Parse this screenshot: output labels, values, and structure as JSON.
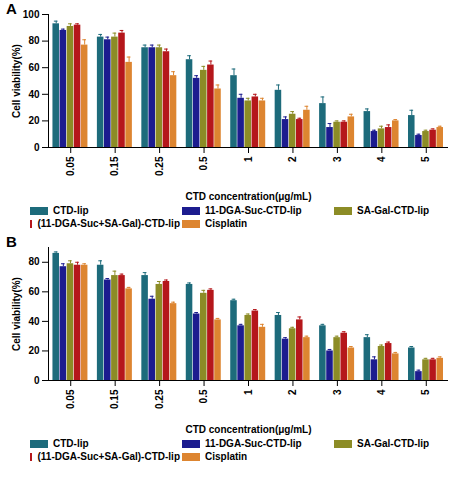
{
  "chart_data": [
    {
      "type": "bar",
      "title": "A",
      "legend": "bottom",
      "x_label": "CTD concentration(μg/mL)",
      "y_label": "Cell viability(%)",
      "categories": [
        "0.05",
        "0.15",
        "0.25",
        "0.5",
        "1",
        "2",
        "3",
        "4",
        "5"
      ],
      "ylim": [
        0,
        100
      ],
      "yticks": [
        0,
        20,
        40,
        60,
        80,
        100
      ],
      "series": [
        {
          "name": "CTD-lip",
          "color": "#1d6b7b",
          "values": [
            93,
            83,
            75,
            66,
            54,
            43,
            33,
            27,
            24
          ],
          "errors": [
            2,
            2,
            2,
            3,
            5,
            4,
            5,
            2,
            4
          ]
        },
        {
          "name": "11-DGA-Suc-CTD-lip",
          "color": "#1c1c8f",
          "values": [
            88,
            81,
            75,
            52,
            37,
            21,
            15,
            12,
            9
          ],
          "errors": [
            1,
            2,
            2,
            2,
            3,
            2,
            3,
            1,
            1
          ]
        },
        {
          "name": "SA-Gal-CTD-lip",
          "color": "#8c8c26",
          "values": [
            91,
            83,
            75,
            58,
            35,
            25,
            19,
            14,
            12
          ],
          "errors": [
            2,
            3,
            2,
            3,
            2,
            2,
            1,
            2,
            1
          ]
        },
        {
          "name": "(11-DGA-Suc+SA-Gal)-CTD-lip",
          "color": "#b5171b",
          "values": [
            92,
            86,
            72,
            62,
            38,
            21,
            19,
            15,
            13
          ],
          "errors": [
            1,
            2,
            2,
            3,
            2,
            1,
            1,
            2,
            1
          ]
        },
        {
          "name": "Cisplatin",
          "color": "#dd8530",
          "values": [
            77,
            64,
            54,
            44,
            35,
            28,
            23,
            20,
            15
          ],
          "errors": [
            4,
            4,
            3,
            3,
            2,
            3,
            2,
            1,
            1
          ]
        }
      ]
    },
    {
      "type": "bar",
      "title": "B",
      "legend": "bottom",
      "x_label": "CTD concentration(μg/mL)",
      "y_label": "Cell viability(%)",
      "categories": [
        "0.05",
        "0.15",
        "0.25",
        "0.5",
        "1",
        "2",
        "3",
        "4",
        "5"
      ],
      "ylim": [
        0,
        90
      ],
      "yticks": [
        0,
        20,
        40,
        60,
        80
      ],
      "series": [
        {
          "name": "CTD-lip",
          "color": "#1d6b7b",
          "values": [
            86,
            78,
            71,
            65,
            54,
            44,
            37,
            29,
            22
          ],
          "errors": [
            1,
            3,
            2,
            1,
            1,
            2,
            1,
            2,
            1
          ]
        },
        {
          "name": "11-DGA-Suc-CTD-lip",
          "color": "#1c1c8f",
          "values": [
            77,
            68,
            55,
            45,
            37,
            28,
            20,
            14,
            6
          ],
          "errors": [
            2,
            1,
            2,
            1,
            1,
            1,
            1,
            2,
            1
          ]
        },
        {
          "name": "SA-Gal-CTD-lip",
          "color": "#8c8c26",
          "values": [
            79,
            71,
            65,
            59,
            44,
            35,
            29,
            23,
            14
          ],
          "errors": [
            2,
            3,
            2,
            2,
            1,
            1,
            1,
            1,
            1
          ]
        },
        {
          "name": "(11-DGA-Suc+SA-Gal)-CTD-lip",
          "color": "#b5171b",
          "values": [
            78,
            71,
            67,
            61,
            47,
            41,
            32,
            25,
            14
          ],
          "errors": [
            2,
            1,
            1,
            1,
            1,
            2,
            1,
            1,
            1
          ]
        },
        {
          "name": "Cisplatin",
          "color": "#dd8530",
          "values": [
            78,
            62,
            52,
            41,
            36,
            29,
            22,
            18,
            15
          ],
          "errors": [
            1,
            1,
            1,
            1,
            2,
            1,
            1,
            1,
            1
          ]
        }
      ]
    }
  ]
}
